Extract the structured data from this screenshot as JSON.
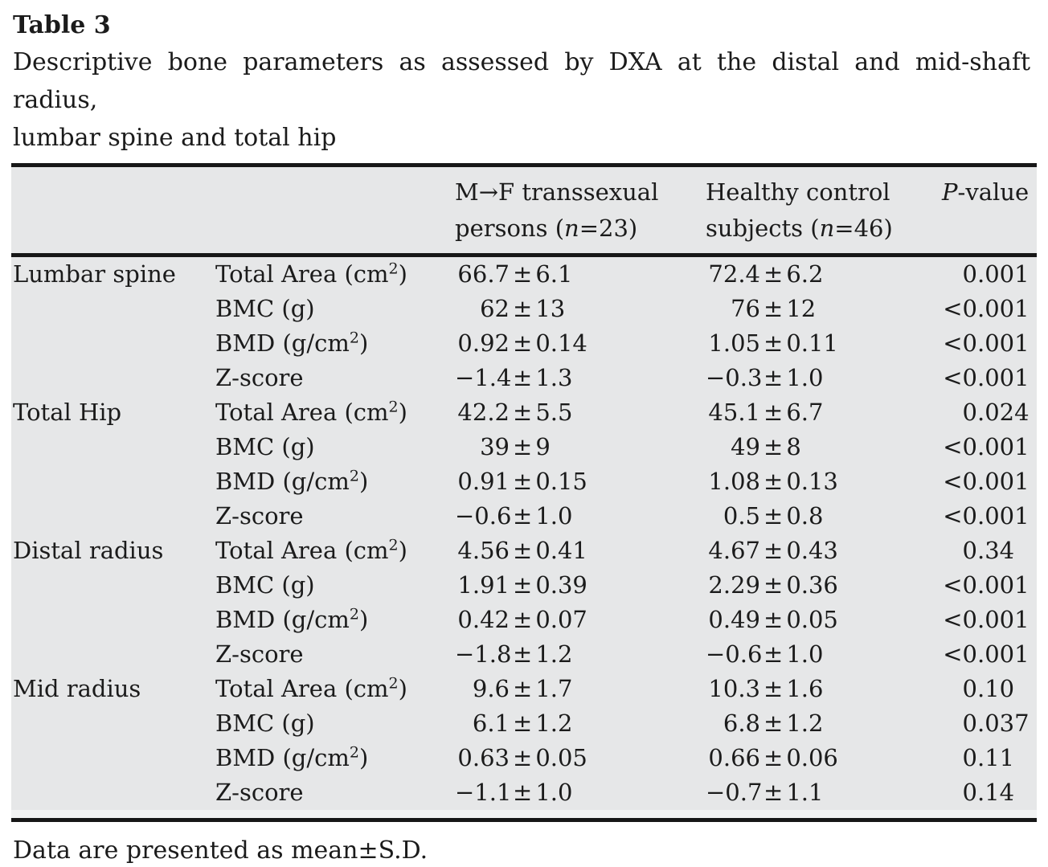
{
  "title": "Table 3",
  "caption_line1": "Descriptive bone parameters as assessed by DXA at the distal and mid-shaft radius,",
  "caption_line2": "lumbar spine and total hip",
  "colors": {
    "table_background": "#e6e7e8",
    "rule": "#171717",
    "text": "#1b1b1b",
    "page_background": "#ffffff"
  },
  "table": {
    "header": {
      "g1_line1": "M→F transsexual",
      "g1_pre": "persons (",
      "g1_n": "n",
      "g1_post": "=23)",
      "g2_line1": "Healthy control",
      "g2_pre": "subjects (",
      "g2_n": "n",
      "g2_post": "=46)",
      "p_italic": "P",
      "p_rest": "-value"
    },
    "sections": [
      {
        "site": "Lumbar spine",
        "rows": [
          {
            "label": "Total Area (cm",
            "sup": "2",
            "after": ")",
            "g1": "66.7±6.1",
            "g2": "72.4±6.2",
            "p": "0.001"
          },
          {
            "label": "BMC (g)",
            "g1": "62±13",
            "g2": "76±12",
            "p": "<0.001"
          },
          {
            "label": "BMD (g/cm",
            "sup": "2",
            "after": ")",
            "g1": "0.92±0.14",
            "g2": "1.05±0.11",
            "p": "<0.001"
          },
          {
            "label": "Z-score",
            "g1": "−1.4±1.3",
            "g2": "−0.3±1.0",
            "p": "<0.001"
          }
        ]
      },
      {
        "site": "Total Hip",
        "rows": [
          {
            "label": "Total Area (cm",
            "sup": "2",
            "after": ")",
            "g1": "42.2±5.5",
            "g2": "45.1±6.7",
            "p": "0.024"
          },
          {
            "label": "BMC (g)",
            "g1": "39±9",
            "g2": "49±8",
            "p": "<0.001"
          },
          {
            "label": "BMD (g/cm",
            "sup": "2",
            "after": ")",
            "g1": "0.91±0.15",
            "g2": "1.08±0.13",
            "p": "<0.001"
          },
          {
            "label": "Z-score",
            "g1": "−0.6±1.0",
            "g2": "0.5±0.8",
            "p": "<0.001"
          }
        ]
      },
      {
        "site": "Distal radius",
        "rows": [
          {
            "label": "Total Area (cm",
            "sup": "2",
            "after": ")",
            "g1": "4.56±0.41",
            "g2": "4.67±0.43",
            "p": "0.34"
          },
          {
            "label": "BMC (g)",
            "g1": "1.91±0.39",
            "g2": "2.29±0.36",
            "p": "<0.001"
          },
          {
            "label": "BMD (g/cm",
            "sup": "2",
            "after": ")",
            "g1": "0.42±0.07",
            "g2": "0.49±0.05",
            "p": "<0.001"
          },
          {
            "label": "Z-score",
            "g1": "−1.8±1.2",
            "g2": "−0.6±1.0",
            "p": "<0.001"
          }
        ]
      },
      {
        "site": "Mid radius",
        "rows": [
          {
            "label": "Total Area (cm",
            "sup": "2",
            "after": ")",
            "g1": "9.6±1.7",
            "g2": "10.3±1.6",
            "p": "0.10"
          },
          {
            "label": "BMC (g)",
            "g1": "6.1±1.2",
            "g2": "6.8±1.2",
            "p": "0.037"
          },
          {
            "label": "BMD (g/cm",
            "sup": "2",
            "after": ")",
            "g1": "0.63±0.05",
            "g2": "0.66±0.06",
            "p": "0.11"
          },
          {
            "label": "Z-score",
            "g1": "−1.1±1.0",
            "g2": "−0.7±1.1",
            "p": "0.14"
          }
        ]
      }
    ]
  },
  "footnote": "Data are presented as mean±S.D."
}
